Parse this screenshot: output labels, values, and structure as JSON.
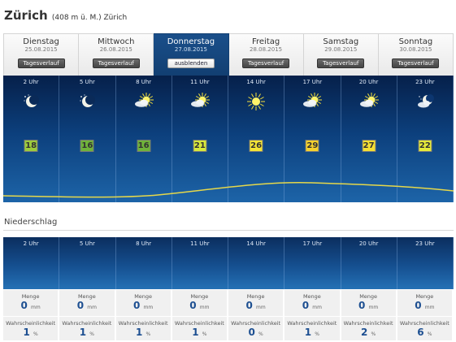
{
  "location": {
    "name": "Zürich",
    "detail": "(408 m ü. M.) Zürich"
  },
  "days": [
    {
      "name": "Dienstag",
      "date": "25.08.2015",
      "button": "Tagesverlauf",
      "active": false
    },
    {
      "name": "Mittwoch",
      "date": "26.08.2015",
      "button": "Tagesverlauf",
      "active": false
    },
    {
      "name": "Donnerstag",
      "date": "27.08.2015",
      "button": "ausblenden",
      "active": true
    },
    {
      "name": "Freitag",
      "date": "28.08.2015",
      "button": "Tagesverlauf",
      "active": false
    },
    {
      "name": "Samstag",
      "date": "29.08.2015",
      "button": "Tagesverlauf",
      "active": false
    },
    {
      "name": "Sonntag",
      "date": "30.08.2015",
      "button": "Tagesverlauf",
      "active": false
    }
  ],
  "hours": [
    {
      "time": "2 Uhr",
      "icon": "moon-stars-icon",
      "temp": "18",
      "temp_color": "#9ccc3c"
    },
    {
      "time": "5 Uhr",
      "icon": "moon-stars-icon",
      "temp": "16",
      "temp_color": "#6fb33a"
    },
    {
      "time": "8 Uhr",
      "icon": "sun-cloud-icon",
      "temp": "16",
      "temp_color": "#6fb33a"
    },
    {
      "time": "11 Uhr",
      "icon": "sun-cloud-icon",
      "temp": "21",
      "temp_color": "#d7e83b"
    },
    {
      "time": "14 Uhr",
      "icon": "sun-icon",
      "temp": "26",
      "temp_color": "#f4e535"
    },
    {
      "time": "17 Uhr",
      "icon": "sun-cloud-icon",
      "temp": "29",
      "temp_color": "#f5d22e"
    },
    {
      "time": "20 Uhr",
      "icon": "sun-cloud-icon",
      "temp": "27",
      "temp_color": "#f4df33"
    },
    {
      "time": "23 Uhr",
      "icon": "moon-cloud-icon",
      "temp": "22",
      "temp_color": "#e5ea3a"
    }
  ],
  "precipitation": {
    "title": "Niederschlag",
    "amount_label": "Menge",
    "amount_unit": "mm",
    "prob_label": "Wahrscheinlichkeit",
    "prob_unit": "%",
    "items": [
      {
        "time": "2 Uhr",
        "amount": "0",
        "prob": "1"
      },
      {
        "time": "5 Uhr",
        "amount": "0",
        "prob": "1"
      },
      {
        "time": "8 Uhr",
        "amount": "0",
        "prob": "1"
      },
      {
        "time": "11 Uhr",
        "amount": "0",
        "prob": "1"
      },
      {
        "time": "14 Uhr",
        "amount": "0",
        "prob": "0"
      },
      {
        "time": "17 Uhr",
        "amount": "0",
        "prob": "1"
      },
      {
        "time": "20 Uhr",
        "amount": "0",
        "prob": "2"
      },
      {
        "time": "23 Uhr",
        "amount": "0",
        "prob": "6"
      }
    ]
  },
  "colors": {
    "curve": "#e6d84a",
    "active_tab": "#123f72"
  }
}
